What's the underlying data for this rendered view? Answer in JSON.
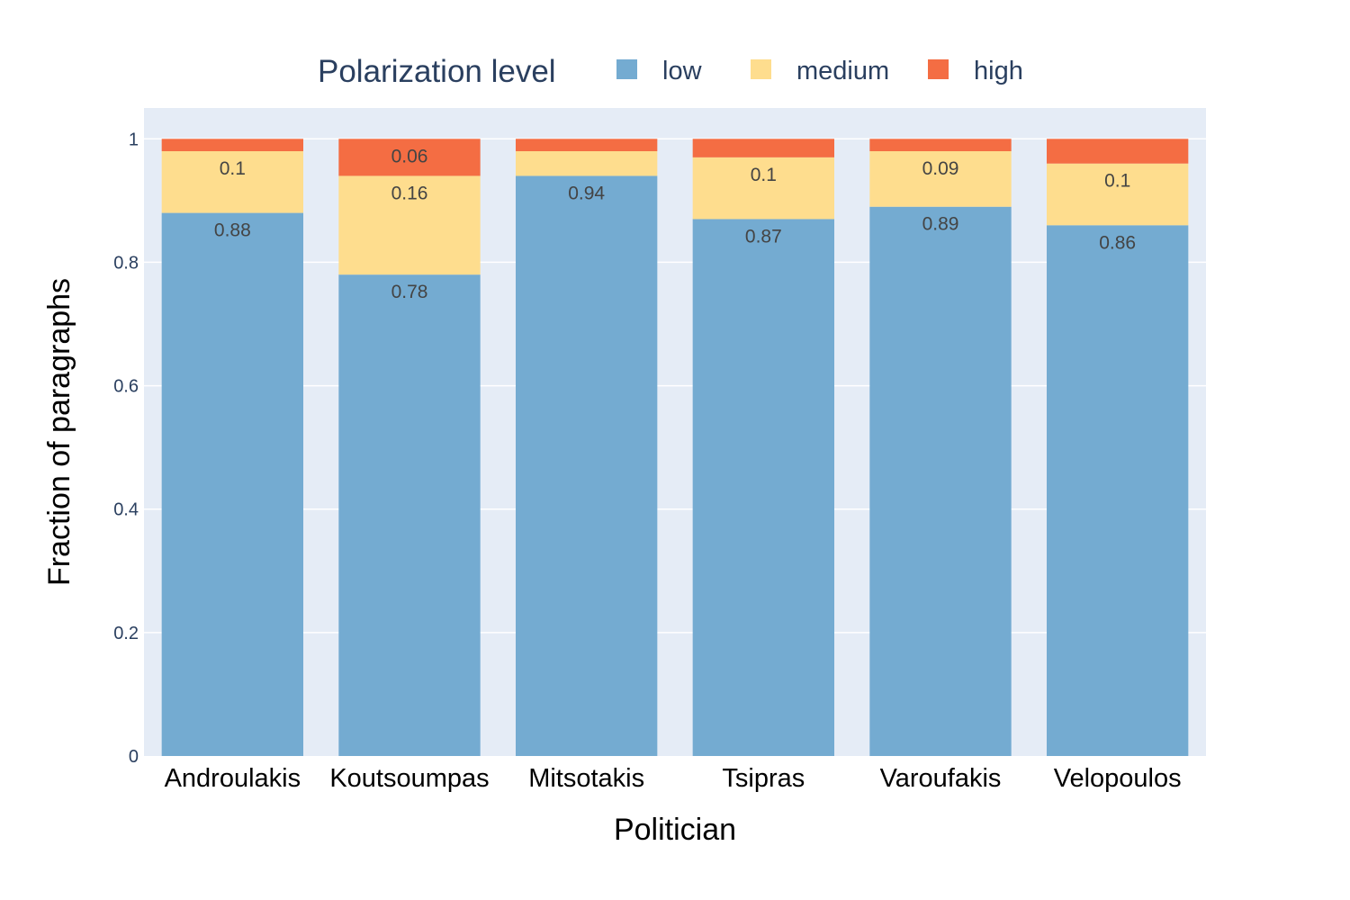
{
  "chart_data": {
    "type": "bar",
    "stacked": true,
    "legend_title": "Polarization level",
    "legend_position": "top",
    "xlabel": "Politician",
    "ylabel": "Fraction of paragraphs",
    "ylim": [
      0,
      1.05
    ],
    "yticks": [
      "0",
      "0.2",
      "0.4",
      "0.6",
      "0.8",
      "1"
    ],
    "grid": true,
    "categories": [
      "Androulakis",
      "Koutsoumpas",
      "Mitsotakis",
      "Tsipras",
      "Varoufakis",
      "Velopoulos"
    ],
    "series": [
      {
        "name": "low",
        "color": "#74abd1",
        "values": [
          0.88,
          0.78,
          0.94,
          0.87,
          0.89,
          0.86
        ],
        "labels": [
          "0.88",
          "0.78",
          "0.94",
          "0.87",
          "0.89",
          "0.86"
        ]
      },
      {
        "name": "medium",
        "color": "#fedd8e",
        "values": [
          0.1,
          0.16,
          0.04,
          0.1,
          0.09,
          0.1
        ],
        "labels": [
          "0.1",
          "0.16",
          "",
          "0.1",
          "0.09",
          "0.1"
        ]
      },
      {
        "name": "high",
        "color": "#f46d43",
        "values": [
          0.02,
          0.06,
          0.02,
          0.03,
          0.02,
          0.04
        ],
        "labels": [
          "",
          "0.06",
          "",
          "",
          "",
          ""
        ]
      }
    ],
    "colors": {
      "plot_background": "#e5ecf6",
      "gridline": "#ffffff",
      "text": "#2a3f5f"
    }
  }
}
